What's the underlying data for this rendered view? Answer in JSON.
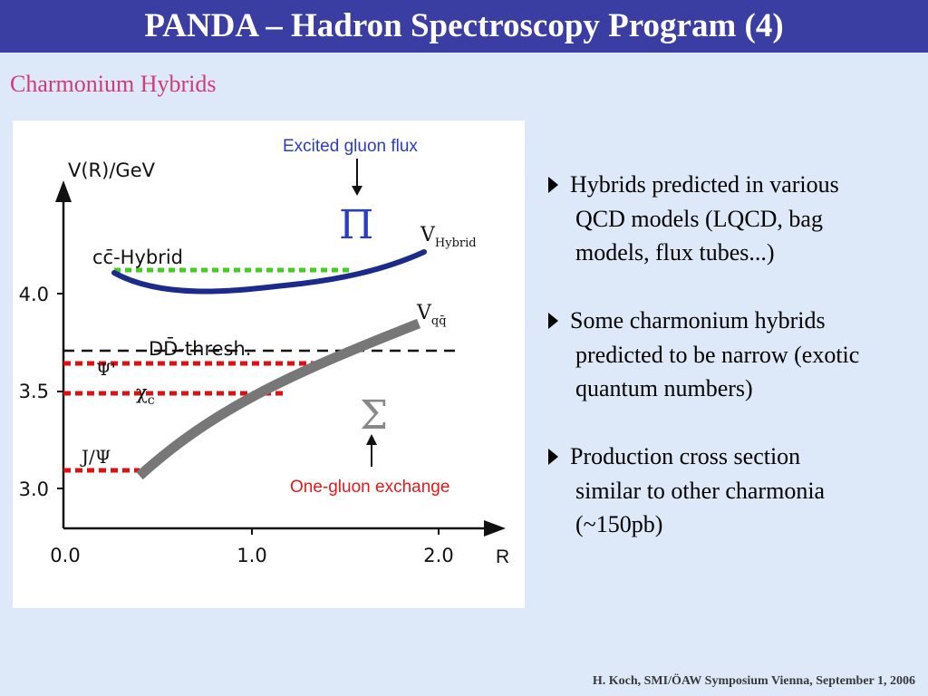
{
  "title": "PANDA – Hadron Spectroscopy Program (4)",
  "subtitle": "Charmonium Hybrids",
  "figure": {
    "y_axis_label": "V(R)/GeV",
    "x_axis_label": "R",
    "y_ticks": [
      "4.0",
      "3.5",
      "3.0"
    ],
    "x_ticks": [
      "0.0",
      "1.0",
      "2.0"
    ],
    "excited_label": "Excited gluon flux",
    "one_gluon_label": "One-gluon exchange",
    "pi_symbol": "Π",
    "sigma_symbol": "Σ",
    "v_hybrid_main": "V",
    "v_hybrid_sub": "Hybrid",
    "v_qq_main": "V",
    "v_qq_sub": "qq̄",
    "cc_hybrid_label": "cc̄-Hybrid",
    "dd_thresh_label": "DD̄-thresh.",
    "psi_label": "Ψ'",
    "chi_main": "χ",
    "chi_sub": "c",
    "jpsi_label": "J/Ψ",
    "colors": {
      "title_bar": "#3a3ea2",
      "subtitle": "#d03c78",
      "hybrid_curve": "#1c2a8c",
      "qq_curve": "#777777",
      "green_dash": "#44cc22",
      "red_dash": "#dd1111",
      "blue_label": "#2a3cc8",
      "red_label": "#e81818"
    }
  },
  "bullets": [
    {
      "lines": [
        "Hybrids predicted in various",
        "QCD models (LQCD, bag",
        "models, flux tubes...)"
      ]
    },
    {
      "lines": [
        "Some charmonium hybrids",
        "predicted to be narrow (exotic",
        "quantum numbers)"
      ]
    },
    {
      "lines": [
        "Production cross section",
        "similar to other charmonia",
        "(~150pb)"
      ]
    }
  ],
  "footer": "H. Koch, SMI/ÖAW Symposium Vienna, September 1, 2006"
}
